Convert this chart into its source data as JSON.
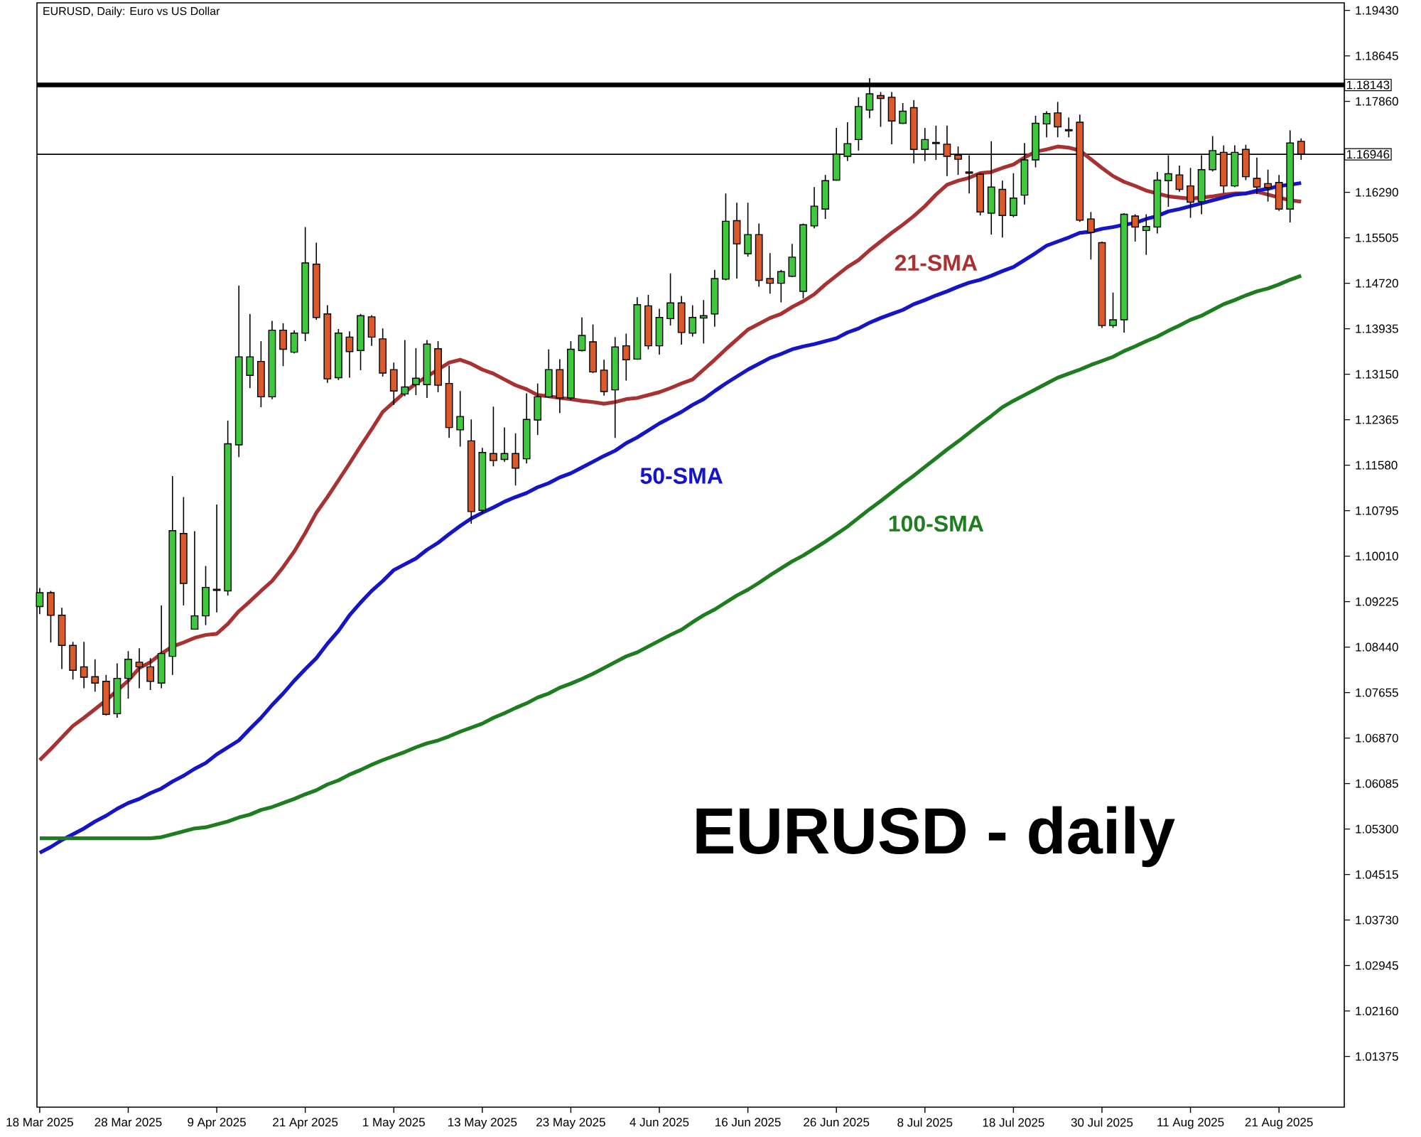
{
  "chart_data": {
    "type": "candlestick",
    "title": "EURUSD, Daily: Euro vs US Dollar",
    "categories": [
      "18 Mar 2025",
      null,
      null,
      null,
      null,
      null,
      null,
      null,
      "28 Mar 2025",
      null,
      null,
      null,
      null,
      null,
      null,
      null,
      "9 Apr 2025",
      null,
      null,
      null,
      null,
      null,
      null,
      null,
      "21 Apr 2025",
      null,
      null,
      null,
      null,
      null,
      null,
      null,
      "1 May 2025",
      null,
      null,
      null,
      null,
      null,
      null,
      null,
      "13 May 2025",
      null,
      null,
      null,
      null,
      null,
      null,
      null,
      "23 May 2025",
      null,
      null,
      null,
      null,
      null,
      null,
      null,
      "4 Jun 2025",
      null,
      null,
      null,
      null,
      null,
      null,
      null,
      "16 Jun 2025",
      null,
      null,
      null,
      null,
      null,
      null,
      null,
      "26 Jun 2025",
      null,
      null,
      null,
      null,
      null,
      null,
      null,
      "8 Jul 2025",
      null,
      null,
      null,
      null,
      null,
      null,
      null,
      "18 Jul 2025",
      null,
      null,
      null,
      null,
      null,
      null,
      null,
      "30 Jul 2025",
      null,
      null,
      null,
      null,
      null,
      null,
      null,
      "11 Aug 2025",
      null,
      null,
      null,
      null,
      null,
      null,
      null,
      "21 Aug 2025",
      null,
      null
    ],
    "ohlc": [
      [
        1.0914,
        1.0946,
        1.0901,
        1.0938
      ],
      [
        1.0938,
        1.0941,
        1.0852,
        1.0899
      ],
      [
        1.0899,
        1.0912,
        1.0806,
        1.0847
      ],
      [
        1.0847,
        1.0853,
        1.0788,
        1.0804
      ],
      [
        1.081,
        1.0853,
        1.0773,
        1.0792
      ],
      [
        1.0793,
        1.0823,
        1.0767,
        1.0782
      ],
      [
        1.0785,
        1.0796,
        1.0726,
        1.0728
      ],
      [
        1.0729,
        1.0816,
        1.0722,
        1.079
      ],
      [
        1.079,
        1.0837,
        1.0755,
        1.0823
      ],
      [
        1.0818,
        1.0842,
        1.0773,
        1.081
      ],
      [
        1.081,
        1.0825,
        1.077,
        1.0785
      ],
      [
        1.0782,
        1.0916,
        1.0773,
        1.0833
      ],
      [
        1.0828,
        1.1139,
        1.0796,
        1.1045
      ],
      [
        1.104,
        1.1103,
        1.0916,
        1.0954
      ],
      [
        1.0875,
        1.1044,
        1.0874,
        1.0898
      ],
      [
        1.0898,
        1.0984,
        1.0882,
        1.0947
      ],
      [
        1.0944,
        1.109,
        1.0904,
        1.0942
      ],
      [
        1.0941,
        1.1235,
        1.0933,
        1.1195
      ],
      [
        1.1193,
        1.1468,
        1.1172,
        1.1345
      ],
      [
        1.1313,
        1.1419,
        1.1291,
        1.1345
      ],
      [
        1.1337,
        1.1372,
        1.1258,
        1.1276
      ],
      [
        1.1276,
        1.1407,
        1.1272,
        1.1391
      ],
      [
        1.1391,
        1.1403,
        1.1329,
        1.1358
      ],
      [
        1.1353,
        1.1391,
        1.1351,
        1.1386
      ],
      [
        1.1386,
        1.1569,
        1.1372,
        1.1507
      ],
      [
        1.1505,
        1.1542,
        1.1409,
        1.1413
      ],
      [
        1.1419,
        1.1434,
        1.13,
        1.1307
      ],
      [
        1.1309,
        1.1393,
        1.1305,
        1.1386
      ],
      [
        1.1379,
        1.1389,
        1.1309,
        1.1354
      ],
      [
        1.1356,
        1.1419,
        1.1322,
        1.1416
      ],
      [
        1.1414,
        1.1417,
        1.1364,
        1.1379
      ],
      [
        1.1376,
        1.1394,
        1.1311,
        1.1317
      ],
      [
        1.1323,
        1.1335,
        1.1262,
        1.1286
      ],
      [
        1.1281,
        1.1374,
        1.1277,
        1.1293
      ],
      [
        1.1297,
        1.136,
        1.1279,
        1.1308
      ],
      [
        1.1297,
        1.1374,
        1.1274,
        1.1367
      ],
      [
        1.1359,
        1.1372,
        1.1284,
        1.1296
      ],
      [
        1.1299,
        1.133,
        1.1205,
        1.1223
      ],
      [
        1.1219,
        1.1286,
        1.119,
        1.1242
      ],
      [
        1.12,
        1.1237,
        1.1057,
        1.1078
      ],
      [
        1.108,
        1.1188,
        1.1075,
        1.118
      ],
      [
        1.1178,
        1.1259,
        1.1156,
        1.1166
      ],
      [
        1.1168,
        1.1223,
        1.1164,
        1.1178
      ],
      [
        1.1178,
        1.1213,
        1.1123,
        1.1153
      ],
      [
        1.1169,
        1.1282,
        1.1161,
        1.1237
      ],
      [
        1.1236,
        1.1299,
        1.121,
        1.1276
      ],
      [
        1.1276,
        1.1358,
        1.1274,
        1.1323
      ],
      [
        1.1323,
        1.1341,
        1.1248,
        1.1274
      ],
      [
        1.1274,
        1.1372,
        1.127,
        1.1358
      ],
      [
        1.1356,
        1.1413,
        1.1354,
        1.1382
      ],
      [
        1.1371,
        1.1401,
        1.1317,
        1.1319
      ],
      [
        1.1322,
        1.134,
        1.1278,
        1.1285
      ],
      [
        1.1288,
        1.1379,
        1.1205,
        1.1362
      ],
      [
        1.1364,
        1.1385,
        1.1304,
        1.134
      ],
      [
        1.1341,
        1.1448,
        1.134,
        1.1435
      ],
      [
        1.1433,
        1.1452,
        1.1358,
        1.1364
      ],
      [
        1.1364,
        1.1428,
        1.1349,
        1.1413
      ],
      [
        1.1411,
        1.1489,
        1.1399,
        1.1438
      ],
      [
        1.1438,
        1.145,
        1.1366,
        1.1387
      ],
      [
        1.1386,
        1.1434,
        1.138,
        1.1413
      ],
      [
        1.1412,
        1.1443,
        1.1368,
        1.1416
      ],
      [
        1.1419,
        1.1495,
        1.1397,
        1.148
      ],
      [
        1.1479,
        1.1627,
        1.1477,
        1.1579
      ],
      [
        1.158,
        1.1611,
        1.148,
        1.154
      ],
      [
        1.1523,
        1.1611,
        1.1518,
        1.1556
      ],
      [
        1.1556,
        1.1575,
        1.1466,
        1.1477
      ],
      [
        1.148,
        1.1524,
        1.1454,
        1.1472
      ],
      [
        1.1472,
        1.1495,
        1.1439,
        1.1492
      ],
      [
        1.1484,
        1.154,
        1.1483,
        1.1517
      ],
      [
        1.1458,
        1.1575,
        1.1446,
        1.1573
      ],
      [
        1.1571,
        1.1638,
        1.1567,
        1.1605
      ],
      [
        1.16,
        1.1659,
        1.1583,
        1.1649
      ],
      [
        1.165,
        1.174,
        1.1649,
        1.1695
      ],
      [
        1.1691,
        1.175,
        1.1683,
        1.1713
      ],
      [
        1.172,
        1.1793,
        1.1701,
        1.1777
      ],
      [
        1.1771,
        1.1826,
        1.1757,
        1.1799
      ],
      [
        1.1796,
        1.1802,
        1.1742,
        1.1791
      ],
      [
        1.1793,
        1.1802,
        1.1712,
        1.1752
      ],
      [
        1.1748,
        1.1783,
        1.1747,
        1.1769
      ],
      [
        1.1775,
        1.1788,
        1.1679,
        1.1703
      ],
      [
        1.1703,
        1.174,
        1.1683,
        1.172
      ],
      [
        1.1715,
        1.1744,
        1.1685,
        1.1713
      ],
      [
        1.1712,
        1.1744,
        1.1657,
        1.1691
      ],
      [
        1.1693,
        1.1708,
        1.1659,
        1.1686
      ],
      [
        1.1664,
        1.1693,
        1.1627,
        1.1662
      ],
      [
        1.166,
        1.1662,
        1.1589,
        1.1595
      ],
      [
        1.1593,
        1.1717,
        1.1556,
        1.1638
      ],
      [
        1.1634,
        1.1649,
        1.1551,
        1.1589
      ],
      [
        1.1589,
        1.1662,
        1.1586,
        1.1619
      ],
      [
        1.1624,
        1.1714,
        1.1608,
        1.1685
      ],
      [
        1.1685,
        1.1761,
        1.1672,
        1.1748
      ],
      [
        1.1747,
        1.1769,
        1.1724,
        1.1765
      ],
      [
        1.1766,
        1.1785,
        1.1724,
        1.1742
      ],
      [
        1.1737,
        1.1758,
        1.1724,
        1.1735
      ],
      [
        1.175,
        1.1763,
        1.1578,
        1.1581
      ],
      [
        1.1583,
        1.1595,
        1.1513,
        1.156
      ],
      [
        1.1542,
        1.1544,
        1.1395,
        1.1399
      ],
      [
        1.1399,
        1.1456,
        1.1395,
        1.1409
      ],
      [
        1.1409,
        1.1593,
        1.1387,
        1.1591
      ],
      [
        1.1588,
        1.1591,
        1.1544,
        1.1569
      ],
      [
        1.1563,
        1.1591,
        1.1521,
        1.157
      ],
      [
        1.1569,
        1.1664,
        1.1558,
        1.165
      ],
      [
        1.1649,
        1.1693,
        1.1604,
        1.1661
      ],
      [
        1.1659,
        1.1675,
        1.163,
        1.1634
      ],
      [
        1.164,
        1.1671,
        1.1585,
        1.1612
      ],
      [
        1.1613,
        1.1693,
        1.1591,
        1.1668
      ],
      [
        1.1668,
        1.1726,
        1.1665,
        1.1701
      ],
      [
        1.1698,
        1.171,
        1.1627,
        1.164
      ],
      [
        1.164,
        1.171,
        1.1638,
        1.1698
      ],
      [
        1.1703,
        1.1711,
        1.165,
        1.1656
      ],
      [
        1.1653,
        1.1689,
        1.1626,
        1.1638
      ],
      [
        1.1644,
        1.1668,
        1.1613,
        1.1637
      ],
      [
        1.1646,
        1.1659,
        1.1597,
        1.16
      ],
      [
        1.16,
        1.1736,
        1.1577,
        1.1714
      ],
      [
        1.1717,
        1.1722,
        1.1685,
        1.1695
      ]
    ],
    "series": [
      {
        "name": "21-SMA",
        "type": "line",
        "color": "#a83232",
        "values": [
          1.0649,
          1.0668,
          1.0688,
          1.0708,
          1.0722,
          1.0737,
          1.0752,
          1.0769,
          1.0786,
          1.0808,
          1.0818,
          1.0833,
          1.0845,
          1.0852,
          1.086,
          1.0865,
          1.0867,
          1.0884,
          1.0906,
          1.0923,
          1.0941,
          1.0958,
          1.0982,
          1.1009,
          1.1041,
          1.1076,
          1.1103,
          1.1132,
          1.1161,
          1.1191,
          1.122,
          1.125,
          1.1267,
          1.1284,
          1.1299,
          1.1311,
          1.1323,
          1.1335,
          1.134,
          1.1333,
          1.1323,
          1.1316,
          1.1306,
          1.1296,
          1.1289,
          1.1279,
          1.1277,
          1.1274,
          1.1272,
          1.1269,
          1.1267,
          1.1264,
          1.1267,
          1.1272,
          1.1274,
          1.1279,
          1.1284,
          1.1291,
          1.1299,
          1.1306,
          1.1323,
          1.134,
          1.1358,
          1.1375,
          1.1392,
          1.1402,
          1.1412,
          1.1419,
          1.1431,
          1.1441,
          1.1453,
          1.147,
          1.1485,
          1.15,
          1.1512,
          1.1529,
          1.1544,
          1.1559,
          1.1573,
          1.1588,
          1.1605,
          1.1625,
          1.1642,
          1.1649,
          1.1654,
          1.1662,
          1.1664,
          1.1671,
          1.1677,
          1.1689,
          1.1699,
          1.1703,
          1.1708,
          1.1706,
          1.1701,
          1.1686,
          1.1671,
          1.1657,
          1.1647,
          1.164,
          1.1632,
          1.1627,
          1.1622,
          1.162,
          1.1618,
          1.162,
          1.1622,
          1.1625,
          1.1627,
          1.1627,
          1.163,
          1.1625,
          1.162,
          1.1615,
          1.1613
        ]
      },
      {
        "name": "50-SMA",
        "type": "line",
        "color": "#1414c8",
        "values": [
          1.0489,
          1.0499,
          1.0511,
          1.0521,
          1.0531,
          1.0543,
          1.0553,
          1.0565,
          1.0575,
          1.0582,
          1.0592,
          1.06,
          1.0612,
          1.0622,
          1.0634,
          1.0644,
          1.0659,
          1.0671,
          1.0683,
          1.0703,
          1.0722,
          1.0744,
          1.0764,
          1.0786,
          1.0806,
          1.0825,
          1.085,
          1.0872,
          1.0899,
          1.0921,
          1.0941,
          1.0958,
          1.0977,
          1.0987,
          1.0997,
          1.1012,
          1.1024,
          1.1039,
          1.1053,
          1.1066,
          1.1076,
          1.1085,
          1.1095,
          1.1103,
          1.111,
          1.112,
          1.1127,
          1.1137,
          1.1144,
          1.1154,
          1.1164,
          1.1174,
          1.1183,
          1.1196,
          1.1206,
          1.1218,
          1.123,
          1.124,
          1.125,
          1.1262,
          1.1272,
          1.1286,
          1.1299,
          1.1311,
          1.1323,
          1.1333,
          1.1343,
          1.135,
          1.1358,
          1.1363,
          1.1367,
          1.1372,
          1.1377,
          1.1387,
          1.1394,
          1.1404,
          1.1412,
          1.1419,
          1.1426,
          1.1436,
          1.1443,
          1.1451,
          1.1458,
          1.1466,
          1.1473,
          1.1478,
          1.1485,
          1.1493,
          1.15,
          1.1512,
          1.1524,
          1.1537,
          1.1544,
          1.1551,
          1.1559,
          1.1561,
          1.1566,
          1.1569,
          1.1573,
          1.1576,
          1.1583,
          1.1588,
          1.1596,
          1.16,
          1.1605,
          1.161,
          1.1615,
          1.162,
          1.1625,
          1.1627,
          1.1632,
          1.1635,
          1.164,
          1.1642,
          1.1645
        ]
      },
      {
        "name": "100-SMA",
        "type": "line",
        "color": "#1e7d1e",
        "values": [
          1.0514,
          1.0514,
          1.0514,
          1.0514,
          1.0514,
          1.0514,
          1.0514,
          1.0514,
          1.0514,
          1.0514,
          1.0514,
          1.0516,
          1.0521,
          1.0526,
          1.0531,
          1.0533,
          1.0538,
          1.0543,
          1.055,
          1.0555,
          1.0563,
          1.0568,
          1.0575,
          1.0582,
          1.059,
          1.0597,
          1.0607,
          1.0614,
          1.0624,
          1.0632,
          1.0641,
          1.0649,
          1.0656,
          1.0663,
          1.0671,
          1.0678,
          1.0683,
          1.069,
          1.0698,
          1.0705,
          1.0712,
          1.0722,
          1.073,
          1.0739,
          1.0747,
          1.0757,
          1.0764,
          1.0774,
          1.0781,
          1.0789,
          1.0798,
          1.0808,
          1.0818,
          1.0828,
          1.0835,
          1.0845,
          1.0855,
          1.0865,
          1.0874,
          1.0887,
          1.0899,
          1.0909,
          1.0921,
          1.0933,
          1.0943,
          1.0955,
          1.0968,
          1.098,
          1.0992,
          1.1002,
          1.1014,
          1.1026,
          1.1039,
          1.1052,
          1.1067,
          1.1082,
          1.1096,
          1.1111,
          1.1126,
          1.114,
          1.1155,
          1.117,
          1.1185,
          1.1199,
          1.1214,
          1.1229,
          1.1243,
          1.1258,
          1.1269,
          1.1279,
          1.1289,
          1.1299,
          1.1309,
          1.1316,
          1.1323,
          1.1331,
          1.1338,
          1.1345,
          1.1355,
          1.1363,
          1.1372,
          1.138,
          1.139,
          1.1399,
          1.1409,
          1.1416,
          1.1426,
          1.1436,
          1.1443,
          1.1451,
          1.1458,
          1.1463,
          1.147,
          1.1478,
          1.1485
        ]
      }
    ],
    "ylim": [
      1.005,
      1.1956
    ],
    "yticks": [
      {
        "value": 1.01375,
        "label": "1.01375"
      },
      {
        "value": 1.0216,
        "label": "1.02160"
      },
      {
        "value": 1.02945,
        "label": "1.02945"
      },
      {
        "value": 1.0373,
        "label": "1.03730"
      },
      {
        "value": 1.04515,
        "label": "1.04515"
      },
      {
        "value": 1.053,
        "label": "1.05300"
      },
      {
        "value": 1.06085,
        "label": "1.06085"
      },
      {
        "value": 1.0687,
        "label": "1.06870"
      },
      {
        "value": 1.07655,
        "label": "1.07655"
      },
      {
        "value": 1.0844,
        "label": "1.08440"
      },
      {
        "value": 1.09225,
        "label": "1.09225"
      },
      {
        "value": 1.1001,
        "label": "1.10010"
      },
      {
        "value": 1.10795,
        "label": "1.10795"
      },
      {
        "value": 1.1158,
        "label": "1.11580"
      },
      {
        "value": 1.12365,
        "label": "1.12365"
      },
      {
        "value": 1.1315,
        "label": "1.13150"
      },
      {
        "value": 1.13935,
        "label": "1.13935"
      },
      {
        "value": 1.1472,
        "label": "1.14720"
      },
      {
        "value": 1.15505,
        "label": "1.15505"
      },
      {
        "value": 1.1629,
        "label": "1.16290"
      },
      {
        "value": 1.1786,
        "label": "1.17860"
      },
      {
        "value": 1.18645,
        "label": "1.18645"
      },
      {
        "value": 1.1943,
        "label": "1.19430"
      }
    ],
    "ref_lines": [
      {
        "axis": "y",
        "value": 1.18143,
        "label": "1.18143",
        "color": "#000000"
      },
      {
        "axis": "y",
        "value": 1.16946,
        "label": "1.16946",
        "color": "#000000"
      }
    ],
    "annotations": [
      "EURUSD - daily"
    ]
  }
}
